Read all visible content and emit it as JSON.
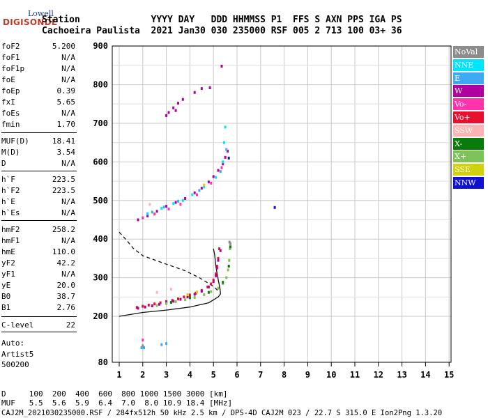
{
  "logo": {
    "top": "Lowell",
    "main": "DIGISONDE"
  },
  "header": {
    "line1": "Station             YYYY DAY   DDD HHMMSS P1  FFS S AXN PPS IGA PS",
    "line2": "Cachoeira Paulista  2021 Jan30 030 235000 RSF 005 2 713 100 03+ 36"
  },
  "params": [
    {
      "k": "foF2",
      "v": "5.200"
    },
    {
      "k": "foF1",
      "v": "N/A"
    },
    {
      "k": "foF1p",
      "v": "N/A"
    },
    {
      "k": "foE",
      "v": "N/A"
    },
    {
      "k": "foEp",
      "v": "0.39"
    },
    {
      "k": "fxI",
      "v": "5.65"
    },
    {
      "k": "foEs",
      "v": "N/A"
    },
    {
      "k": "fmin",
      "v": "1.70"
    },
    {
      "k": "MUF(D)",
      "v": "18.41"
    },
    {
      "k": "M(D)",
      "v": "3.54"
    },
    {
      "k": "D",
      "v": "N/A"
    },
    {
      "k": "h`F",
      "v": "223.5"
    },
    {
      "k": "h`F2",
      "v": "223.5"
    },
    {
      "k": "h`E",
      "v": "N/A"
    },
    {
      "k": "h`Es",
      "v": "N/A"
    },
    {
      "k": "hmF2",
      "v": "258.2"
    },
    {
      "k": "hmF1",
      "v": "N/A"
    },
    {
      "k": "hmE",
      "v": "110.0"
    },
    {
      "k": "yF2",
      "v": "42.2"
    },
    {
      "k": "yF1",
      "v": "N/A"
    },
    {
      "k": "yE",
      "v": "20.0"
    },
    {
      "k": "B0",
      "v": "38.7"
    },
    {
      "k": "B1",
      "v": "2.76"
    },
    {
      "k": "C-level",
      "v": "22"
    }
  ],
  "autoscale": {
    "line1": "Auto:",
    "line2": "Artist5",
    "line3": "500200"
  },
  "legend": [
    {
      "label": "NoVal",
      "color": "#8c8c8c"
    },
    {
      "label": "NNE",
      "color": "#00e5ff"
    },
    {
      "label": "E",
      "color": "#3ea9f5"
    },
    {
      "label": "W",
      "color": "#b0009f"
    },
    {
      "label": "Vo-",
      "color": "#ff33aa"
    },
    {
      "label": "Vo+",
      "color": "#e8102c"
    },
    {
      "label": "SSW",
      "color": "#ffb3b3"
    },
    {
      "label": "X-",
      "color": "#0a7a0a"
    },
    {
      "label": "X+",
      "color": "#7dc35a"
    },
    {
      "label": "SSE",
      "color": "#cfd10a"
    },
    {
      "label": "NNW",
      "color": "#1010d0"
    }
  ],
  "footer": {
    "d_line": "D     100  200  400  600  800 1000 1500 3000 [km]",
    "muf_line": "MUF   5.5  5.6  5.9  6.4  7.0  8.0 10.9 18.4 [MHz]",
    "file_line": "CAJ2M_2021030235000.RSF / 284fx512h 50 kHz 2.5 km / DPS-4D CAJ2M 023 / 22.7 S 315.0 E Ion2Png 1.3.20"
  },
  "chart_data": {
    "type": "scatter",
    "xlim": [
      1,
      15
    ],
    "ylim": [
      80,
      900
    ],
    "xticks": [
      "1",
      "2",
      "3",
      "4",
      "5",
      "6",
      "7",
      "8",
      "9",
      "10",
      "11",
      "12",
      "13",
      "14",
      "15"
    ],
    "yticks": [
      "80",
      "200",
      "300",
      "400",
      "500",
      "600",
      "700",
      "800",
      "900"
    ],
    "grid": true,
    "series": [
      {
        "name": "Vo+",
        "color": "#e8102c",
        "points": [
          [
            1.75,
            223
          ],
          [
            2.0,
            226
          ],
          [
            2.25,
            229
          ],
          [
            2.5,
            232
          ],
          [
            2.75,
            235
          ],
          [
            3.0,
            238
          ],
          [
            3.25,
            241
          ],
          [
            3.5,
            245
          ],
          [
            3.75,
            250
          ],
          [
            4.0,
            255
          ],
          [
            4.25,
            260
          ],
          [
            4.5,
            267
          ],
          [
            4.75,
            276
          ],
          [
            4.9,
            284
          ],
          [
            5.0,
            294
          ],
          [
            5.1,
            310
          ],
          [
            5.15,
            330
          ],
          [
            5.2,
            350
          ],
          [
            5.25,
            375
          ]
        ]
      },
      {
        "name": "W",
        "color": "#b0009f",
        "points": [
          [
            1.8,
            221
          ],
          [
            2.1,
            224
          ],
          [
            2.4,
            227
          ],
          [
            2.7,
            231
          ],
          [
            3.0,
            235
          ],
          [
            3.3,
            239
          ],
          [
            3.6,
            244
          ],
          [
            3.9,
            250
          ],
          [
            4.2,
            257
          ],
          [
            4.5,
            265
          ],
          [
            4.8,
            276
          ],
          [
            5.0,
            290
          ],
          [
            5.1,
            305
          ],
          [
            5.15,
            325
          ],
          [
            5.2,
            345
          ],
          [
            5.3,
            370
          ],
          [
            1.8,
            450
          ],
          [
            2.2,
            460
          ],
          [
            2.6,
            472
          ],
          [
            3.0,
            485
          ],
          [
            3.4,
            495
          ],
          [
            3.8,
            505
          ],
          [
            4.2,
            520
          ],
          [
            4.5,
            532
          ],
          [
            4.8,
            548
          ],
          [
            5.0,
            562
          ],
          [
            5.2,
            578
          ],
          [
            5.4,
            595
          ],
          [
            5.5,
            612
          ],
          [
            5.6,
            628
          ]
        ]
      },
      {
        "name": "X+",
        "color": "#7dc35a",
        "points": [
          [
            2.6,
            228
          ],
          [
            3.0,
            233
          ],
          [
            3.4,
            238
          ],
          [
            3.8,
            243
          ],
          [
            4.2,
            249
          ],
          [
            4.6,
            256
          ],
          [
            4.9,
            264
          ],
          [
            5.2,
            273
          ],
          [
            5.4,
            285
          ],
          [
            5.55,
            300
          ],
          [
            5.62,
            320
          ],
          [
            5.67,
            345
          ],
          [
            5.7,
            375
          ]
        ]
      },
      {
        "name": "X-",
        "color": "#0a7a0a",
        "points": [
          [
            3.2,
            236
          ],
          [
            4.0,
            248
          ],
          [
            4.8,
            262
          ],
          [
            5.4,
            288
          ],
          [
            5.65,
            330
          ],
          [
            5.72,
            380
          ]
        ]
      },
      {
        "name": "NNE",
        "color": "#00e5ff",
        "points": [
          [
            2.2,
            466
          ],
          [
            2.8,
            480
          ],
          [
            3.3,
            492
          ],
          [
            3.7,
            500
          ],
          [
            4.1,
            515
          ],
          [
            4.6,
            535
          ],
          [
            5.1,
            560
          ],
          [
            5.4,
            600
          ],
          [
            5.45,
            650
          ],
          [
            5.5,
            690
          ]
        ]
      },
      {
        "name": "E",
        "color": "#3ea9f5",
        "points": [
          [
            1.95,
            118
          ],
          [
            2.05,
            118
          ],
          [
            2.4,
            470
          ],
          [
            2.9,
            483
          ],
          [
            3.5,
            498
          ],
          [
            4.4,
            526
          ],
          [
            5.3,
            575
          ],
          [
            5.55,
            632
          ],
          [
            2.8,
            126
          ],
          [
            3.0,
            129
          ]
        ]
      },
      {
        "name": "Vo-",
        "color": "#ff33aa",
        "points": [
          [
            2.0,
            455
          ],
          [
            2.5,
            465
          ],
          [
            3.1,
            478
          ],
          [
            3.6,
            490
          ],
          [
            4.3,
            515
          ],
          [
            4.9,
            545
          ],
          [
            5.35,
            585
          ],
          [
            2.0,
            138
          ]
        ]
      },
      {
        "name": "SSW",
        "color": "#ffb3b3",
        "points": [
          [
            2.6,
            262
          ],
          [
            3.2,
            270
          ],
          [
            2.3,
            490
          ]
        ]
      },
      {
        "name": "SSE",
        "color": "#cfd10a",
        "points": [
          [
            3.9,
            256
          ],
          [
            4.3,
            263
          ],
          [
            4.6,
            540
          ]
        ]
      },
      {
        "name": "NoVal",
        "color": "#8c8c8c",
        "points": [
          [
            2.0,
            123
          ],
          [
            5.72,
            388
          ],
          [
            5.68,
            392
          ]
        ]
      },
      {
        "name": "NNW",
        "color": "#1010d0",
        "points": [
          [
            7.6,
            482
          ],
          [
            5.65,
            610
          ]
        ]
      },
      {
        "name": "spread",
        "color": "#b0009f",
        "points": [
          [
            3.0,
            720
          ],
          [
            3.1,
            728
          ],
          [
            3.3,
            740
          ],
          [
            3.5,
            752
          ],
          [
            3.7,
            762
          ],
          [
            4.2,
            780
          ],
          [
            4.5,
            790
          ],
          [
            4.85,
            792
          ],
          [
            5.35,
            848
          ],
          [
            3.4,
            733
          ]
        ]
      }
    ],
    "profile_solid": [
      [
        1.0,
        200
      ],
      [
        2.0,
        210
      ],
      [
        3.0,
        216
      ],
      [
        4.0,
        224
      ],
      [
        4.8,
        235
      ],
      [
        5.2,
        250
      ],
      [
        5.3,
        258
      ],
      [
        5.28,
        270
      ],
      [
        5.2,
        295
      ],
      [
        5.1,
        330
      ],
      [
        5.05,
        360
      ],
      [
        5.0,
        375
      ]
    ],
    "profile_dashed": [
      [
        1.0,
        418
      ],
      [
        1.3,
        398
      ],
      [
        1.6,
        376
      ],
      [
        2.0,
        357
      ],
      [
        3.0,
        335
      ],
      [
        3.8,
        318
      ],
      [
        4.4,
        300
      ],
      [
        4.8,
        285
      ],
      [
        5.05,
        275
      ],
      [
        5.2,
        265
      ]
    ]
  }
}
